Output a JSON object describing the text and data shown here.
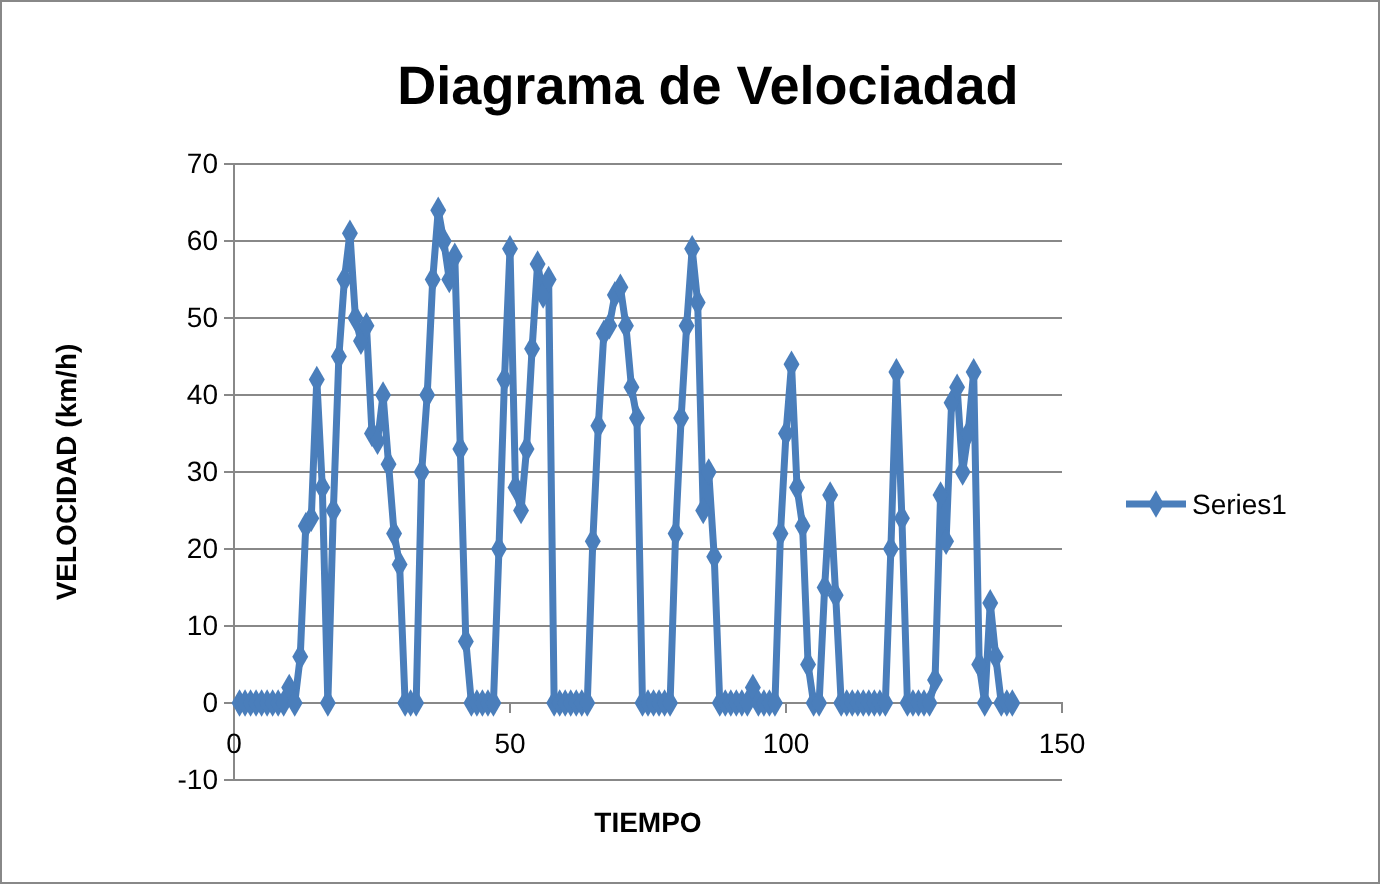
{
  "chart_data": {
    "type": "line",
    "title": "Diagrama de Velociadad",
    "xlabel": "TIEMPO",
    "ylabel": "VELOCIDAD (km/h)",
    "x": [
      1,
      2,
      3,
      4,
      5,
      6,
      7,
      8,
      9,
      10,
      11,
      12,
      13,
      14,
      15,
      16,
      17,
      18,
      19,
      20,
      21,
      22,
      23,
      24,
      25,
      26,
      27,
      28,
      29,
      30,
      31,
      32,
      33,
      34,
      35,
      36,
      37,
      38,
      39,
      40,
      41,
      42,
      43,
      44,
      45,
      46,
      47,
      48,
      49,
      50,
      51,
      52,
      53,
      54,
      55,
      56,
      57,
      58,
      59,
      60,
      61,
      62,
      63,
      64,
      65,
      66,
      67,
      68,
      69,
      70,
      71,
      72,
      73,
      74,
      75,
      76,
      77,
      78,
      79,
      80,
      81,
      82,
      83,
      84,
      85,
      86,
      87,
      88,
      89,
      90,
      91,
      92,
      93,
      94,
      95,
      96,
      97,
      98,
      99,
      100,
      101,
      102,
      103,
      104,
      105,
      106,
      107,
      108,
      109,
      110,
      111,
      112,
      113,
      114,
      115,
      116,
      117,
      118,
      119,
      120,
      121,
      122,
      123,
      124,
      125,
      126,
      127,
      128,
      129,
      130,
      131,
      132,
      133,
      134,
      135,
      136,
      137,
      138,
      139,
      140,
      141
    ],
    "series": [
      {
        "name": "Series1",
        "color": "#4a7ebb",
        "values": [
          0,
          0,
          0,
          0,
          0,
          0,
          0,
          0,
          0,
          2,
          0,
          6,
          23,
          24,
          42,
          28,
          0,
          25,
          45,
          55,
          61,
          50,
          47,
          49,
          35,
          34,
          40,
          31,
          22,
          18,
          0,
          0,
          0,
          30,
          40,
          55,
          64,
          60,
          55,
          58,
          33,
          8,
          0,
          0,
          0,
          0,
          0,
          20,
          42,
          59,
          28,
          25,
          33,
          46,
          57,
          53,
          55,
          0,
          0,
          0,
          0,
          0,
          0,
          0,
          21,
          36,
          48,
          49,
          53,
          54,
          49,
          41,
          37,
          0,
          0,
          0,
          0,
          0,
          0,
          22,
          37,
          49,
          59,
          52,
          25,
          30,
          19,
          0,
          0,
          0,
          0,
          0,
          0,
          2,
          0,
          0,
          0,
          0,
          22,
          35,
          44,
          28,
          23,
          5,
          0,
          0,
          15,
          27,
          14,
          0,
          0,
          0,
          0,
          0,
          0,
          0,
          0,
          0,
          20,
          43,
          24,
          0,
          0,
          0,
          0,
          0,
          3,
          27,
          21,
          39,
          41,
          30,
          35,
          43,
          5,
          0,
          13,
          6,
          0,
          0,
          0
        ]
      }
    ],
    "xlim": [
      0,
      150
    ],
    "xticks": [
      0,
      50,
      100,
      150
    ],
    "ylim": [
      -10,
      70
    ],
    "yticks": [
      -10,
      0,
      10,
      20,
      30,
      40,
      50,
      60,
      70
    ],
    "grid": "y",
    "legend": "right",
    "marker": "diamond",
    "line_style": "solid"
  }
}
